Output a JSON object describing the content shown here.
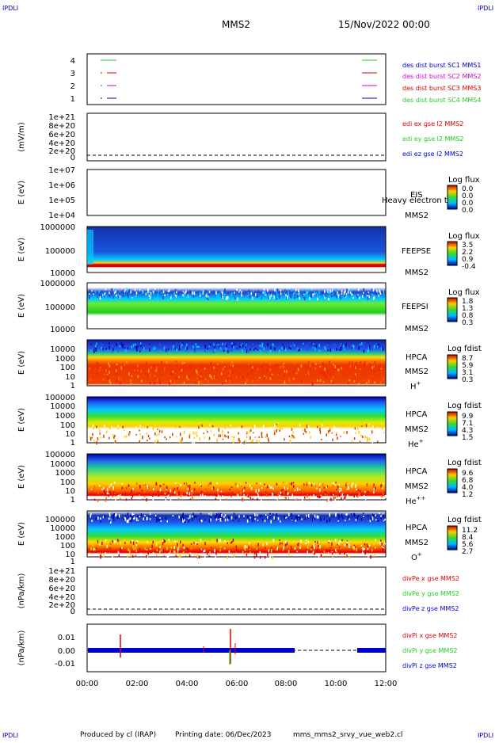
{
  "corner_label": "IPDLI",
  "header": {
    "mission": "MMS2",
    "datetime": "15/Nov/2022 00:00"
  },
  "footer": {
    "produced_by": "Produced by cl (IRAP)",
    "printing_date": "Printing date: 06/Dec/2023",
    "filename": "mms_mms2_srvy_vue_web2.cl"
  },
  "colors": {
    "red": "#dd0000",
    "green": "#22cc22",
    "magenta": "#dd00dd",
    "blue": "#0000cc",
    "spectro_top": "#2233cc",
    "spectro_bottom": "#dd2200"
  },
  "chart_data": {
    "type": "multi-panel time series / spectrogram",
    "x_axis": {
      "ticks": [
        "00:00",
        "02:00",
        "04:00",
        "06:00",
        "08:00",
        "10:00",
        "12:00"
      ],
      "range_hours": [
        0,
        12
      ]
    },
    "panels": [
      {
        "id": "burst",
        "type": "timeline",
        "yticks": [
          "4",
          "3",
          "2",
          "1"
        ],
        "legend": [
          "des dist burst SC1 MMS1",
          "des dist burst SC2 MMS2",
          "des dist burst SC3 MMS3",
          "des dist burst SC4 MMS4"
        ],
        "legend_colors": [
          "#0000cc",
          "#dd00dd",
          "#dd0000",
          "#22cc22"
        ]
      },
      {
        "id": "edi",
        "type": "line",
        "ylabel": "(mV/m)",
        "yticks": [
          "1e+21",
          "8e+20",
          "6e+20",
          "4e+20",
          "2e+20",
          "0"
        ],
        "legend": [
          "edi ex gse l2 MMS2",
          "edi ey gse l2 MMS2",
          "edi ez gse l2 MMS2"
        ],
        "legend_colors": [
          "#dd0000",
          "#22cc22",
          "#0000cc"
        ]
      },
      {
        "id": "eis",
        "type": "heatmap",
        "ylabel": "E (eV)",
        "yticks": [
          "1e+07",
          "1e+06",
          "1e+05",
          "1e+04"
        ],
        "instrument": "EIS",
        "extra_label": "Heavy electron tof",
        "sc": "MMS2",
        "colorbar_title": "Log flux",
        "colorbar_ticks": [
          "0.0",
          "0.0",
          "0.0",
          "0.0"
        ]
      },
      {
        "id": "feepse",
        "type": "heatmap",
        "ylabel": "E (eV)",
        "yticks": [
          "1000000",
          "100000",
          "10000"
        ],
        "instrument": "FEEPSE",
        "sc": "MMS2",
        "colorbar_title": "Log flux",
        "colorbar_ticks": [
          "3.5",
          "2.2",
          "0.9",
          "-0.4"
        ]
      },
      {
        "id": "feepsi",
        "type": "heatmap",
        "ylabel": "E (eV)",
        "yticks": [
          "1000000",
          "100000",
          "10000"
        ],
        "instrument": "FEEPSI",
        "sc": "MMS2",
        "colorbar_title": "Log flux",
        "colorbar_ticks": [
          "1.8",
          "1.3",
          "0.8",
          "0.3"
        ]
      },
      {
        "id": "hpca_h",
        "type": "heatmap",
        "ylabel": "E (eV)",
        "yticks": [
          "10000",
          "1000",
          "100",
          "10",
          "1"
        ],
        "instrument": "HPCA",
        "sc": "MMS2",
        "species": "H",
        "charge": "+",
        "colorbar_title": "Log fdist",
        "colorbar_ticks": [
          "8.7",
          "5.9",
          "3.1",
          "0.3"
        ]
      },
      {
        "id": "hpca_he",
        "type": "heatmap",
        "ylabel": "E (eV)",
        "yticks": [
          "100000",
          "10000",
          "1000",
          "100",
          "10",
          "1"
        ],
        "instrument": "HPCA",
        "sc": "MMS2",
        "species": "He",
        "charge": "+",
        "colorbar_title": "Log fdist",
        "colorbar_ticks": [
          "9.9",
          "7.1",
          "4.3",
          "1.5"
        ]
      },
      {
        "id": "hpca_hepp",
        "type": "heatmap",
        "ylabel": "E (eV)",
        "yticks": [
          "100000",
          "10000",
          "1000",
          "100",
          "10",
          "1"
        ],
        "instrument": "HPCA",
        "sc": "MMS2",
        "species": "He",
        "charge": "++",
        "colorbar_title": "Log fdist",
        "colorbar_ticks": [
          "9.6",
          "6.8",
          "4.0",
          "1.2"
        ]
      },
      {
        "id": "hpca_o",
        "type": "heatmap",
        "ylabel": "E (eV)",
        "yticks": [
          "100000",
          "10000",
          "1000",
          "100",
          "10",
          "1"
        ],
        "instrument": "HPCA",
        "sc": "MMS2",
        "species": "O",
        "charge": "+",
        "colorbar_title": "Log fdist",
        "colorbar_ticks": [
          "11.2",
          "8.4",
          "5.6",
          "2.7"
        ]
      },
      {
        "id": "divpe",
        "type": "line",
        "ylabel": "(nPa/km)",
        "yticks": [
          "1e+21",
          "8e+20",
          "6e+20",
          "4e+20",
          "2e+20",
          "0"
        ],
        "legend": [
          "divPe x gse MMS2",
          "divPe y gse MMS2",
          "divPe z gse MMS2"
        ],
        "legend_colors": [
          "#dd0000",
          "#22cc22",
          "#0000cc"
        ]
      },
      {
        "id": "divpi",
        "type": "line",
        "ylabel": "(nPa/km)",
        "yticks": [
          "0.01",
          "0.00",
          "-0.01"
        ],
        "legend": [
          "divPi x gse MMS2",
          "divPi y gse MMS2",
          "divPi z gse MMS2"
        ],
        "legend_colors": [
          "#dd0000",
          "#22cc22",
          "#0000cc"
        ]
      }
    ]
  }
}
